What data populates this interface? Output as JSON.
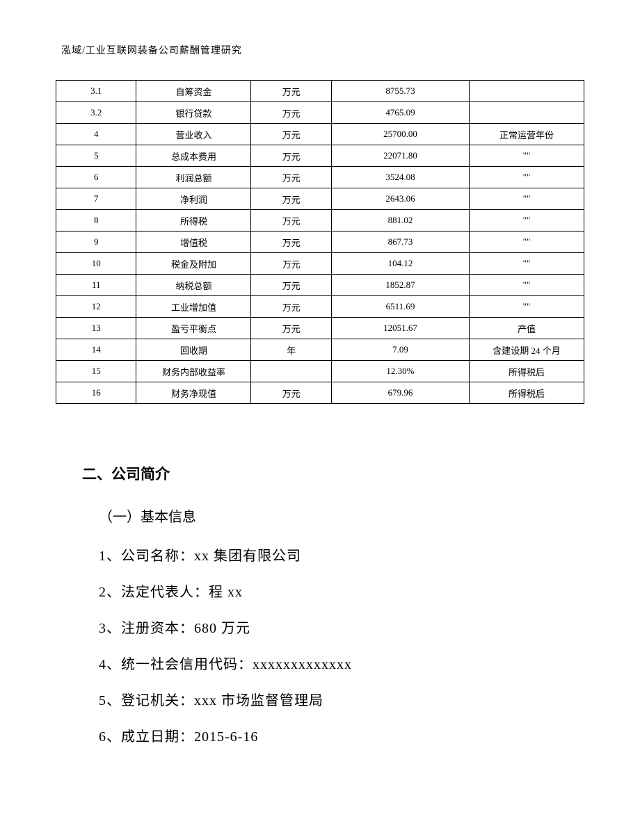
{
  "header": "泓域/工业互联网装备公司薪酬管理研究",
  "table": {
    "rows": [
      [
        "3.1",
        "自筹资金",
        "万元",
        "8755.73",
        ""
      ],
      [
        "3.2",
        "银行贷款",
        "万元",
        "4765.09",
        ""
      ],
      [
        "4",
        "营业收入",
        "万元",
        "25700.00",
        "正常运营年份"
      ],
      [
        "5",
        "总成本费用",
        "万元",
        "22071.80",
        "\"\""
      ],
      [
        "6",
        "利润总额",
        "万元",
        "3524.08",
        "\"\""
      ],
      [
        "7",
        "净利润",
        "万元",
        "2643.06",
        "\"\""
      ],
      [
        "8",
        "所得税",
        "万元",
        "881.02",
        "\"\""
      ],
      [
        "9",
        "增值税",
        "万元",
        "867.73",
        "\"\""
      ],
      [
        "10",
        "税金及附加",
        "万元",
        "104.12",
        "\"\""
      ],
      [
        "11",
        "纳税总额",
        "万元",
        "1852.87",
        "\"\""
      ],
      [
        "12",
        "工业增加值",
        "万元",
        "6511.69",
        "\"\""
      ],
      [
        "13",
        "盈亏平衡点",
        "万元",
        "12051.67",
        "产值"
      ],
      [
        "14",
        "回收期",
        "年",
        "7.09",
        "含建设期 24 个月"
      ],
      [
        "15",
        "财务内部收益率",
        "",
        "12.30%",
        "所得税后"
      ],
      [
        "16",
        "财务净现值",
        "万元",
        "679.96",
        "所得税后"
      ]
    ]
  },
  "section": {
    "title": "二、公司简介",
    "subtitle": "（一）基本信息",
    "items": [
      "1、公司名称：xx 集团有限公司",
      "2、法定代表人：程 xx",
      "3、注册资本：680 万元",
      "4、统一社会信用代码：xxxxxxxxxxxxx",
      "5、登记机关：xxx 市场监督管理局",
      "6、成立日期：2015-6-16"
    ]
  }
}
